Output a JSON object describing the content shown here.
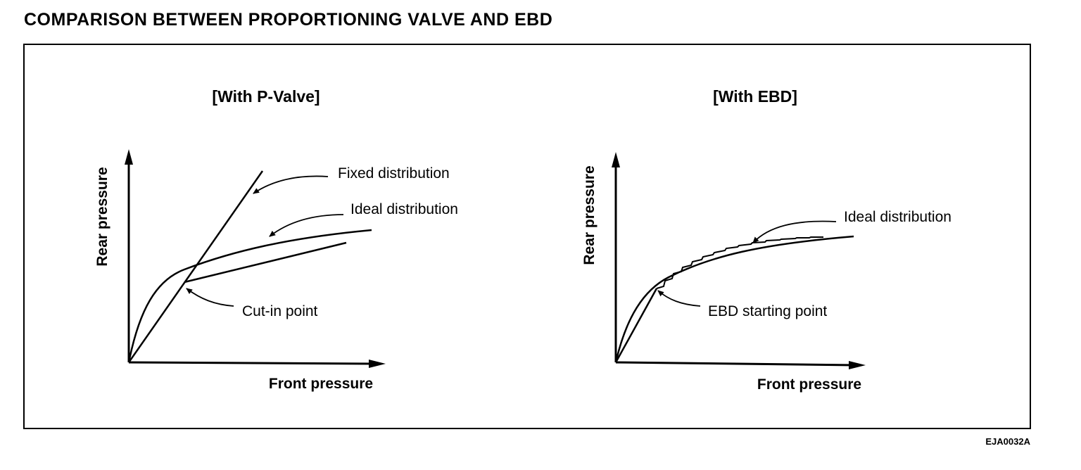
{
  "title": "COMPARISON BETWEEN PROPORTIONING VALVE AND EBD",
  "panels": [
    {
      "heading": "[With P-Valve]",
      "x_axis_label": "Front pressure",
      "y_axis_label": "Rear pressure",
      "callouts": {
        "fixed": "Fixed distribution",
        "ideal": "Ideal distribution",
        "cut_in": "Cut-in point"
      }
    },
    {
      "heading": "[With EBD]",
      "x_axis_label": "Front pressure",
      "y_axis_label": "Rear pressure",
      "callouts": {
        "ideal": "Ideal distribution",
        "start": "EBD starting point"
      }
    }
  ],
  "figure_code": "EJA0032A",
  "colors": {
    "ink": "#000000",
    "background": "#ffffff"
  }
}
